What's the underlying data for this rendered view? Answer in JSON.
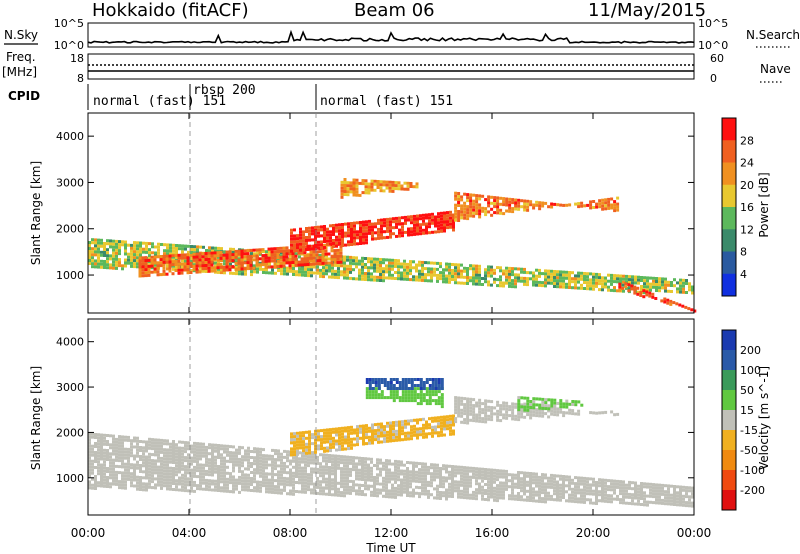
{
  "header": {
    "title": "Hokkaido (fitACF)",
    "beam": "Beam 06",
    "date": "11/May/2015"
  },
  "strips": {
    "nsky_label": "N.Sky",
    "nsky_ticks": [
      "10^5",
      "10^0"
    ],
    "nsearch_label": "N.Search",
    "nsearch_ticks": [
      "10^5",
      "10^0"
    ],
    "freq_label_1": "Freq.",
    "freq_label_2": "[MHz]",
    "freq_ticks": [
      "18",
      "8"
    ],
    "nave_label": "Nave",
    "nave_ticks": [
      "60",
      "0"
    ],
    "cpid_label": "CPID",
    "cpid_segments": [
      {
        "label": "normal (fast) 151",
        "start_hour": 0.0
      },
      {
        "label": "rbsp 200",
        "start_hour": 4.0
      },
      {
        "label": "normal (fast) 151",
        "start_hour": 9.0
      }
    ]
  },
  "colors": {
    "power": [
      "#1030e0",
      "#2a5aa0",
      "#3a8a6a",
      "#5cb85c",
      "#e8c830",
      "#f09020",
      "#f06020",
      "#ff1010"
    ],
    "velocity": [
      "#e01010",
      "#f04a10",
      "#f08a10",
      "#f0b020",
      "#c0c0b8",
      "#60c840",
      "#3a9a5a",
      "#2a5aa8",
      "#1a3ab0"
    ]
  },
  "chart_data": [
    {
      "type": "heatmap",
      "panel": "power",
      "ylabel": "Slant Range [km]",
      "xlabel": "",
      "x_ticks": [
        "00:00",
        "04:00",
        "08:00",
        "12:00",
        "16:00",
        "20:00",
        "00:00"
      ],
      "y_ticks": [
        "1000",
        "2000",
        "3000",
        "4000"
      ],
      "xlim_hours": [
        0,
        24
      ],
      "ylim_km": [
        180,
        4500
      ],
      "colorbar": {
        "label": "Power [dB]",
        "ticks": [
          "28",
          "24",
          "20",
          "16",
          "12",
          "8",
          "4"
        ],
        "range": [
          0,
          32
        ]
      },
      "bands": [
        {
          "t": [
            0,
            24
          ],
          "r_start": [
            1800,
            900
          ],
          "r_end": [
            1200,
            600
          ],
          "level": 16
        },
        {
          "t": [
            2,
            10
          ],
          "r_start": [
            1400,
            1700
          ],
          "r_end": [
            1000,
            1300
          ],
          "level": 26
        },
        {
          "t": [
            8,
            14.5
          ],
          "r_start": [
            1500,
            2000
          ],
          "r_end": [
            2000,
            2400
          ],
          "level": 29
        },
        {
          "t": [
            14.5,
            21
          ],
          "r_start": [
            2200,
            2700
          ],
          "r_end": [
            2800,
            2400
          ],
          "level": 24
        },
        {
          "t": [
            21,
            24
          ],
          "r_start": [
            900,
            250
          ],
          "r_end": [
            700,
            250
          ],
          "level": 28
        },
        {
          "t": [
            10,
            13
          ],
          "r_start": [
            2700,
            2900
          ],
          "r_end": [
            3100,
            3000
          ],
          "level": 22
        }
      ]
    },
    {
      "type": "heatmap",
      "panel": "velocity",
      "ylabel": "Slant Range [km]",
      "xlabel": "Time UT",
      "x_ticks": [
        "00:00",
        "04:00",
        "08:00",
        "12:00",
        "16:00",
        "20:00",
        "00:00"
      ],
      "y_ticks": [
        "1000",
        "2000",
        "3000",
        "4000"
      ],
      "xlim_hours": [
        0,
        24
      ],
      "ylim_km": [
        180,
        4500
      ],
      "colorbar": {
        "label": "Velocity [m s^-1]",
        "ticks": [
          "200",
          "100",
          "50",
          "15",
          "-15",
          "-50",
          "-100",
          "-200"
        ],
        "range": [
          -250,
          250
        ]
      },
      "bands": [
        {
          "t": [
            0,
            24
          ],
          "r_start": [
            2000,
            800
          ],
          "r_end": [
            800,
            400
          ],
          "level": 0
        },
        {
          "t": [
            8,
            14.5
          ],
          "r_start": [
            1500,
            2000
          ],
          "r_end": [
            2000,
            2400
          ],
          "level": -40
        },
        {
          "t": [
            11,
            14
          ],
          "r_start": [
            2800,
            2600
          ],
          "r_end": [
            3000,
            3000
          ],
          "level": 60
        },
        {
          "t": [
            11,
            14
          ],
          "r_start": [
            3000,
            3000
          ],
          "r_end": [
            3200,
            3200
          ],
          "level": 180
        },
        {
          "t": [
            14.5,
            21
          ],
          "r_start": [
            2200,
            2500
          ],
          "r_end": [
            2800,
            2400
          ],
          "level": 0
        },
        {
          "t": [
            17,
            19.5
          ],
          "r_start": [
            2500,
            2600
          ],
          "r_end": [
            2800,
            2700
          ],
          "level": 40
        }
      ]
    }
  ]
}
